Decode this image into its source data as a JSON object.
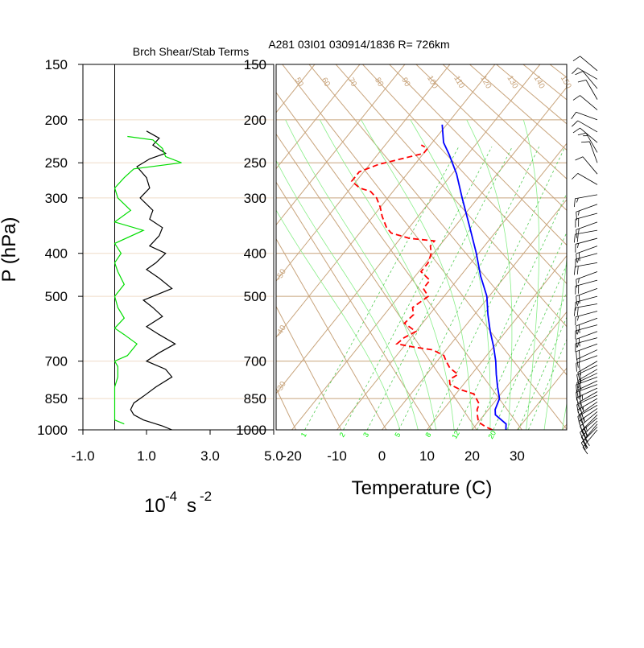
{
  "chart_data": [
    {
      "type": "line",
      "title": "Brch Shear/Stab Terms",
      "ylabel": "P (hPa)",
      "xlabel_base": "10",
      "xlabel_exp": "-4",
      "xlabel_unit": "s",
      "xlabel_unit_exp": "-2",
      "xlim": [
        -1.0,
        5.0
      ],
      "x_ticks": [
        "-1.0",
        "1.0",
        "3.0",
        "5.0"
      ],
      "y_scale": "log",
      "ylim": [
        1000,
        150
      ],
      "y_ticks": [
        "150",
        "200",
        "250",
        "300",
        "400",
        "500",
        "700",
        "850",
        "1000"
      ],
      "y_tick_values": [
        150,
        200,
        250,
        300,
        400,
        500,
        700,
        850,
        1000
      ],
      "zero_line_x": 0.0,
      "series": [
        {
          "color": "#000000",
          "points": [
            [
              1.8,
              1000
            ],
            [
              1.5,
              980
            ],
            [
              0.9,
              950
            ],
            [
              0.6,
              925
            ],
            [
              0.5,
              900
            ],
            [
              0.6,
              870
            ],
            [
              0.9,
              840
            ],
            [
              1.3,
              800
            ],
            [
              1.8,
              760
            ],
            [
              1.6,
              730
            ],
            [
              1.0,
              700
            ],
            [
              1.4,
              670
            ],
            [
              1.9,
              640
            ],
            [
              1.4,
              610
            ],
            [
              1.0,
              585
            ],
            [
              1.5,
              555
            ],
            [
              1.2,
              530
            ],
            [
              0.9,
              510
            ],
            [
              1.8,
              480
            ],
            [
              1.4,
              455
            ],
            [
              1.0,
              435
            ],
            [
              1.3,
              420
            ],
            [
              1.6,
              400
            ],
            [
              1.1,
              385
            ],
            [
              1.4,
              365
            ],
            [
              1.5,
              350
            ],
            [
              1.1,
              335
            ],
            [
              1.2,
              320
            ],
            [
              0.8,
              300
            ],
            [
              1.1,
              285
            ],
            [
              1.0,
              270
            ],
            [
              0.7,
              255
            ],
            [
              1.1,
              245
            ],
            [
              1.6,
              238
            ],
            [
              1.2,
              228
            ],
            [
              1.4,
              220
            ],
            [
              1.0,
              212
            ]
          ]
        },
        {
          "color": "#00dd00",
          "points": [
            [
              0.3,
              970
            ],
            [
              0.0,
              950
            ],
            [
              0.0,
              900
            ],
            [
              0.0,
              850
            ],
            [
              0.0,
              800
            ],
            [
              0.1,
              760
            ],
            [
              0.1,
              720
            ],
            [
              0.0,
              700
            ],
            [
              0.4,
              680
            ],
            [
              0.7,
              640
            ],
            [
              0.3,
              610
            ],
            [
              0.0,
              590
            ],
            [
              0.3,
              560
            ],
            [
              0.1,
              530
            ],
            [
              0.0,
              500
            ],
            [
              0.3,
              470
            ],
            [
              0.1,
              440
            ],
            [
              0.0,
              420
            ],
            [
              0.2,
              400
            ],
            [
              0.0,
              380
            ],
            [
              0.9,
              355
            ],
            [
              0.0,
              340
            ],
            [
              0.5,
              320
            ],
            [
              0.1,
              300
            ],
            [
              0.0,
              285
            ],
            [
              0.3,
              270
            ],
            [
              0.6,
              258
            ],
            [
              2.1,
              250
            ],
            [
              1.6,
              242
            ],
            [
              1.5,
              232
            ],
            [
              1.2,
              222
            ],
            [
              0.4,
              218
            ]
          ]
        }
      ]
    },
    {
      "type": "skewt",
      "title": "A281 03I01 030914/1836 R= 726km",
      "xlabel": "Temperature (C)",
      "x_ticks": [
        "-20",
        "-10",
        "0",
        "10",
        "20",
        "30"
      ],
      "x_tick_values": [
        -20,
        -10,
        0,
        10,
        20,
        30
      ],
      "xlim_at_1000hPa": [
        -23.5,
        41
      ],
      "y_scale": "log",
      "ylim": [
        1000,
        150
      ],
      "y_ticks": [
        "150",
        "200",
        "250",
        "300",
        "400",
        "500",
        "700",
        "850",
        "1000"
      ],
      "y_tick_values": [
        150,
        200,
        250,
        300,
        400,
        500,
        700,
        850,
        1000
      ],
      "skew_c_per_unit_lnp": 34.3,
      "mixing_ratio_labels": [
        "12",
        "16",
        "20",
        "24",
        "28",
        "32"
      ],
      "mixing_ratio_values": [
        12,
        16,
        20,
        24,
        28,
        32
      ],
      "mixing_ratio_bottom_labels": [
        "1",
        "2",
        "3",
        "5",
        "8",
        "12",
        "20"
      ],
      "mixing_ratio_bottom_values": [
        1,
        2,
        3,
        5,
        8,
        12,
        20
      ],
      "isotherm_labels": [
        "-50",
        "-40",
        "-30",
        "-20",
        "-10",
        "0",
        "10",
        "20",
        "30",
        "40"
      ],
      "dry_adiabat_labels": [
        "50",
        "60",
        "70",
        "80",
        "90",
        "100",
        "110",
        "120",
        "130",
        "140",
        "150"
      ],
      "series": [
        {
          "kind": "temperature",
          "color": "#0000ff",
          "dashed": false,
          "points": [
            [
              27.5,
              1000
            ],
            [
              26.5,
              970
            ],
            [
              22.5,
              925
            ],
            [
              21.5,
              900
            ],
            [
              20.5,
              850
            ],
            [
              18,
              800
            ],
            [
              15.5,
              750
            ],
            [
              13,
              700
            ],
            [
              10,
              650
            ],
            [
              6.5,
              600
            ],
            [
              3,
              550
            ],
            [
              -0.5,
              500
            ],
            [
              -5.5,
              450
            ],
            [
              -10.5,
              400
            ],
            [
              -16.5,
              350
            ],
            [
              -23.5,
              300
            ],
            [
              -29,
              265
            ],
            [
              -34,
              240
            ],
            [
              -37.5,
              225
            ],
            [
              -41,
              205
            ]
          ]
        },
        {
          "kind": "dewpoint",
          "color": "#ff0000",
          "dashed": true,
          "points": [
            [
              24.5,
              1000
            ],
            [
              22.5,
              985
            ],
            [
              20,
              960
            ],
            [
              18.5,
              925
            ],
            [
              17.5,
              900
            ],
            [
              17,
              875
            ],
            [
              14,
              830
            ],
            [
              10,
              810
            ],
            [
              7,
              790
            ],
            [
              6,
              770
            ],
            [
              7,
              750
            ],
            [
              4,
              725
            ],
            [
              2,
              700
            ],
            [
              0.5,
              680
            ],
            [
              -3,
              660
            ],
            [
              -8,
              650
            ],
            [
              -12,
              640
            ],
            [
              -11.5,
              620
            ],
            [
              -10,
              600
            ],
            [
              -14,
              575
            ],
            [
              -13.5,
              550
            ],
            [
              -15,
              530
            ],
            [
              -13.5,
              500
            ],
            [
              -16,
              480
            ],
            [
              -16,
              460
            ],
            [
              -19.5,
              440
            ],
            [
              -19.5,
              420
            ],
            [
              -20.5,
              400
            ],
            [
              -22,
              385
            ],
            [
              -22,
              375
            ],
            [
              -28,
              370
            ],
            [
              -33,
              360
            ],
            [
              -35,
              350
            ],
            [
              -38,
              330
            ],
            [
              -40,
              315
            ],
            [
              -42.5,
              300
            ],
            [
              -45,
              290
            ],
            [
              -48,
              285
            ],
            [
              -51,
              275
            ],
            [
              -51,
              262
            ],
            [
              -48,
              252
            ],
            [
              -44,
              245
            ],
            [
              -40,
              238
            ],
            [
              -40,
              232
            ],
            [
              -42,
              228
            ]
          ]
        }
      ]
    }
  ],
  "wind_barbs": [
    {
      "p": 1000,
      "dir": 220,
      "spd": 15
    },
    {
      "p": 985,
      "dir": 225,
      "spd": 20
    },
    {
      "p": 970,
      "dir": 220,
      "spd": 20
    },
    {
      "p": 955,
      "dir": 225,
      "spd": 25
    },
    {
      "p": 940,
      "dir": 230,
      "spd": 20
    },
    {
      "p": 925,
      "dir": 225,
      "spd": 25
    },
    {
      "p": 910,
      "dir": 230,
      "spd": 20
    },
    {
      "p": 895,
      "dir": 235,
      "spd": 25
    },
    {
      "p": 880,
      "dir": 240,
      "spd": 20
    },
    {
      "p": 865,
      "dir": 235,
      "spd": 20
    },
    {
      "p": 850,
      "dir": 240,
      "spd": 25
    },
    {
      "p": 835,
      "dir": 245,
      "spd": 20
    },
    {
      "p": 820,
      "dir": 240,
      "spd": 20
    },
    {
      "p": 805,
      "dir": 245,
      "spd": 25
    },
    {
      "p": 790,
      "dir": 250,
      "spd": 20
    },
    {
      "p": 775,
      "dir": 245,
      "spd": 20
    },
    {
      "p": 760,
      "dir": 250,
      "spd": 15
    },
    {
      "p": 745,
      "dir": 245,
      "spd": 20
    },
    {
      "p": 730,
      "dir": 240,
      "spd": 15
    },
    {
      "p": 715,
      "dir": 245,
      "spd": 20
    },
    {
      "p": 700,
      "dir": 240,
      "spd": 15
    },
    {
      "p": 680,
      "dir": 250,
      "spd": 20
    },
    {
      "p": 660,
      "dir": 245,
      "spd": 15
    },
    {
      "p": 640,
      "dir": 250,
      "spd": 20
    },
    {
      "p": 620,
      "dir": 255,
      "spd": 15
    },
    {
      "p": 600,
      "dir": 250,
      "spd": 20
    },
    {
      "p": 580,
      "dir": 255,
      "spd": 15
    },
    {
      "p": 560,
      "dir": 250,
      "spd": 20
    },
    {
      "p": 540,
      "dir": 255,
      "spd": 15
    },
    {
      "p": 520,
      "dir": 260,
      "spd": 20
    },
    {
      "p": 500,
      "dir": 255,
      "spd": 15
    },
    {
      "p": 480,
      "dir": 250,
      "spd": 20
    },
    {
      "p": 460,
      "dir": 255,
      "spd": 20
    },
    {
      "p": 440,
      "dir": 250,
      "spd": 15
    },
    {
      "p": 420,
      "dir": 260,
      "spd": 20
    },
    {
      "p": 400,
      "dir": 255,
      "spd": 15
    },
    {
      "p": 385,
      "dir": 250,
      "spd": 20
    },
    {
      "p": 370,
      "dir": 255,
      "spd": 15
    },
    {
      "p": 355,
      "dir": 260,
      "spd": 20
    },
    {
      "p": 340,
      "dir": 250,
      "spd": 15
    },
    {
      "p": 325,
      "dir": 255,
      "spd": 20
    },
    {
      "p": 310,
      "dir": 250,
      "spd": 15
    },
    {
      "p": 295,
      "dir": 260,
      "spd": 15
    },
    {
      "p": 280,
      "dir": 300,
      "spd": 10
    },
    {
      "p": 265,
      "dir": 320,
      "spd": 10
    },
    {
      "p": 250,
      "dir": 340,
      "spd": 10
    },
    {
      "p": 237,
      "dir": 330,
      "spd": 15
    },
    {
      "p": 225,
      "dir": 310,
      "spd": 10
    },
    {
      "p": 213,
      "dir": 300,
      "spd": 10
    },
    {
      "p": 200,
      "dir": 290,
      "spd": 10
    },
    {
      "p": 190,
      "dir": 310,
      "spd": 10
    },
    {
      "p": 180,
      "dir": 330,
      "spd": 10
    },
    {
      "p": 170,
      "dir": 320,
      "spd": 10
    },
    {
      "p": 162,
      "dir": 300,
      "spd": 10
    },
    {
      "p": 155,
      "dir": 310,
      "spd": 10
    }
  ],
  "colors": {
    "isopleth": "#c8a47c",
    "isobar_line": "#efdcc8",
    "moist": "#88ee88",
    "mixing_ratio": "#55cc55",
    "mixing_label": "#00ee00"
  }
}
